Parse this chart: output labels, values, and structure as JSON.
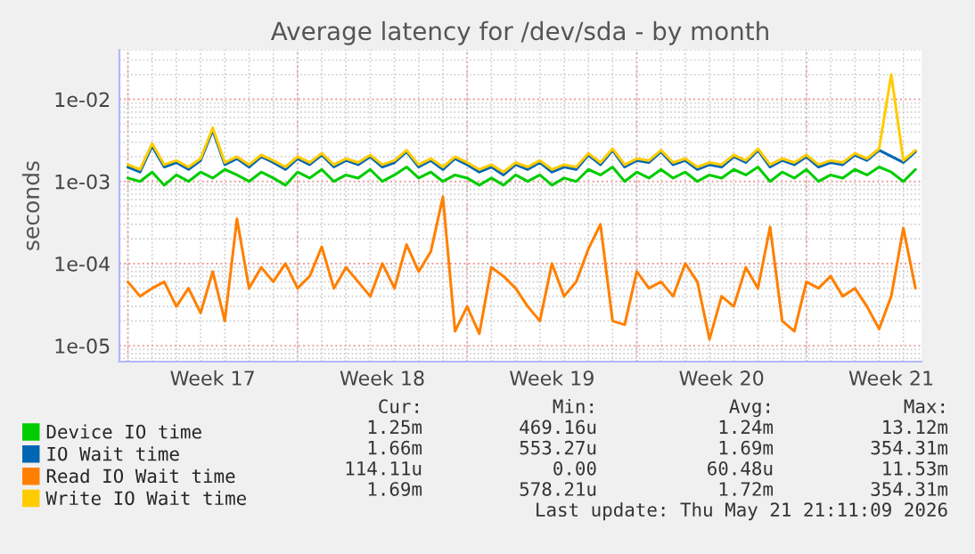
{
  "chart_data": {
    "type": "line",
    "title": "Average latency for /dev/sda - by month",
    "ylabel": "seconds",
    "categories": [
      null,
      null,
      null,
      null,
      null,
      null,
      null,
      "Week 17",
      null,
      null,
      null,
      null,
      null,
      null,
      null,
      null,
      null,
      null,
      null,
      null,
      null,
      "Week 18",
      null,
      null,
      null,
      null,
      null,
      null,
      null,
      null,
      null,
      null,
      null,
      null,
      null,
      "Week 19",
      null,
      null,
      null,
      null,
      null,
      null,
      null,
      null,
      null,
      null,
      null,
      null,
      null,
      "Week 20",
      null,
      null,
      null,
      null,
      null,
      null,
      null,
      null,
      null,
      null,
      null,
      null,
      null,
      "Week 21",
      null,
      null
    ],
    "series": [
      {
        "name": "Device IO time",
        "color": "#00cc00",
        "values": [
          0.0011,
          0.001,
          0.0013,
          0.0009,
          0.0012,
          0.001,
          0.0013,
          0.0011,
          0.0014,
          0.0012,
          0.001,
          0.0013,
          0.0011,
          0.0009,
          0.0013,
          0.0011,
          0.0014,
          0.001,
          0.0012,
          0.0011,
          0.0014,
          0.001,
          0.0012,
          0.0015,
          0.0011,
          0.0013,
          0.001,
          0.0012,
          0.0011,
          0.0009,
          0.0011,
          0.0009,
          0.0012,
          0.001,
          0.0012,
          0.0009,
          0.0011,
          0.001,
          0.0014,
          0.0012,
          0.0015,
          0.001,
          0.0013,
          0.0011,
          0.0014,
          0.0011,
          0.0013,
          0.001,
          0.0012,
          0.0011,
          0.0014,
          0.0012,
          0.0015,
          0.001,
          0.0013,
          0.0011,
          0.0014,
          0.001,
          0.0012,
          0.0011,
          0.0014,
          0.0012,
          0.0015,
          0.0013,
          0.001,
          0.0014
        ]
      },
      {
        "name": "IO Wait time",
        "color": "#0066b3",
        "values": [
          0.0015,
          0.0013,
          0.0027,
          0.0015,
          0.0017,
          0.0014,
          0.0018,
          0.0042,
          0.0016,
          0.0019,
          0.0015,
          0.002,
          0.0017,
          0.0014,
          0.0019,
          0.0016,
          0.0021,
          0.0015,
          0.0018,
          0.0016,
          0.002,
          0.0015,
          0.0017,
          0.0023,
          0.0015,
          0.0018,
          0.0014,
          0.0019,
          0.0016,
          0.0013,
          0.0015,
          0.0012,
          0.0016,
          0.0014,
          0.0017,
          0.0013,
          0.0015,
          0.0014,
          0.0021,
          0.0016,
          0.0024,
          0.0015,
          0.0018,
          0.0017,
          0.0023,
          0.0016,
          0.0018,
          0.0014,
          0.0016,
          0.0015,
          0.002,
          0.0017,
          0.0024,
          0.0015,
          0.0018,
          0.0016,
          0.002,
          0.0015,
          0.0017,
          0.0016,
          0.0021,
          0.0018,
          0.0024,
          null,
          0.0017,
          0.0023
        ]
      },
      {
        "name": "Read IO Wait time",
        "color": "#ff8000",
        "values": [
          6e-05,
          4e-05,
          5e-05,
          6e-05,
          3e-05,
          5e-05,
          2.5e-05,
          8e-05,
          2e-05,
          0.00035,
          5e-05,
          9e-05,
          6e-05,
          0.0001,
          5e-05,
          7e-05,
          0.00016,
          5e-05,
          9e-05,
          6e-05,
          4e-05,
          0.0001,
          5e-05,
          0.00017,
          8e-05,
          0.00014,
          0.00065,
          1.5e-05,
          3e-05,
          1.4e-05,
          9e-05,
          7e-05,
          5e-05,
          3e-05,
          2e-05,
          0.0001,
          4e-05,
          6e-05,
          0.00015,
          0.0003,
          2e-05,
          1.8e-05,
          8e-05,
          5e-05,
          6e-05,
          4e-05,
          0.0001,
          6e-05,
          1.2e-05,
          4e-05,
          3e-05,
          9e-05,
          5e-05,
          0.00028,
          2e-05,
          1.5e-05,
          6e-05,
          5e-05,
          7e-05,
          4e-05,
          5e-05,
          3e-05,
          1.6e-05,
          4e-05,
          0.00027,
          5e-05
        ]
      },
      {
        "name": "Write IO Wait time",
        "color": "#ffcc00",
        "values": [
          0.0016,
          0.0014,
          0.0029,
          0.0016,
          0.0018,
          0.0015,
          0.0019,
          0.0045,
          0.0017,
          0.002,
          0.0016,
          0.0021,
          0.0018,
          0.0015,
          0.002,
          0.0017,
          0.0022,
          0.0016,
          0.0019,
          0.0017,
          0.0021,
          0.0016,
          0.0018,
          0.0024,
          0.0016,
          0.0019,
          0.0015,
          0.002,
          0.0017,
          0.0014,
          0.0016,
          0.0013,
          0.0017,
          0.0015,
          0.0018,
          0.0014,
          0.0016,
          0.0015,
          0.0022,
          0.0017,
          0.0025,
          0.0016,
          0.0019,
          0.0018,
          0.0024,
          0.0017,
          0.0019,
          0.0015,
          0.0017,
          0.0016,
          0.0021,
          0.0018,
          0.0025,
          0.0016,
          0.0019,
          0.0017,
          0.0021,
          0.0016,
          0.0018,
          0.0017,
          0.0022,
          0.0019,
          0.0025,
          0.02,
          0.0018,
          0.0024
        ]
      }
    ],
    "log": "y",
    "ylim": [
      6.4e-06,
      0.04
    ],
    "yticks": [
      {
        "value": 1e-05,
        "label": "1e-05"
      },
      {
        "value": 0.0001,
        "label": "1e-04"
      },
      {
        "value": 0.001,
        "label": "1e-03"
      },
      {
        "value": 0.01,
        "label": "1e-02"
      }
    ],
    "grid": true,
    "legend": "bottom",
    "line_style": "solid",
    "marker": "none",
    "annotations": [
      "Cur:",
      "Min:",
      "Avg:",
      "Max:",
      "1.25m",
      "469.16u",
      "1.24m",
      "13.12m",
      "1.66m",
      "553.27u",
      "1.69m",
      "354.31m",
      "114.11u",
      "0.00",
      "60.48u",
      "11.53m",
      "1.69m",
      "578.21u",
      "1.72m",
      "354.31m",
      "Last update: Thu May 21 21:11:09 2026"
    ]
  }
}
